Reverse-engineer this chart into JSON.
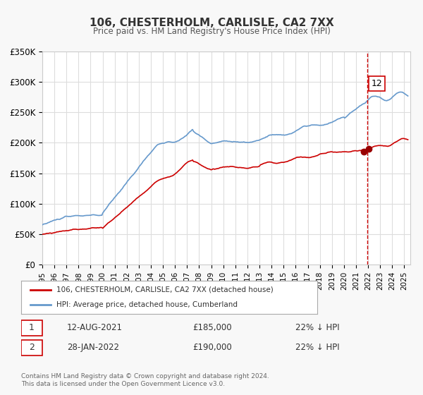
{
  "title": "106, CHESTERHOLM, CARLISLE, CA2 7XX",
  "subtitle": "Price paid vs. HM Land Registry's House Price Index (HPI)",
  "xlabel": "",
  "ylabel": "",
  "ylim": [
    0,
    350000
  ],
  "xlim_start": 1995.0,
  "xlim_end": 2025.5,
  "yticks": [
    0,
    50000,
    100000,
    150000,
    200000,
    250000,
    300000,
    350000
  ],
  "ytick_labels": [
    "£0",
    "£50K",
    "£100K",
    "£150K",
    "£200K",
    "£250K",
    "£300K",
    "£350K"
  ],
  "xticks": [
    1995,
    1996,
    1997,
    1998,
    1999,
    2000,
    2001,
    2002,
    2003,
    2004,
    2005,
    2006,
    2007,
    2008,
    2009,
    2010,
    2011,
    2012,
    2013,
    2014,
    2015,
    2016,
    2017,
    2018,
    2019,
    2020,
    2021,
    2022,
    2023,
    2024,
    2025
  ],
  "red_line_color": "#cc0000",
  "blue_line_color": "#6699cc",
  "marker_color": "#990000",
  "vline_color": "#cc0000",
  "vline_x": 2021.95,
  "annotation_label": "12",
  "sale1_date": "12-AUG-2021",
  "sale1_price": "£185,000",
  "sale1_hpi": "22% ↓ HPI",
  "sale2_date": "28-JAN-2022",
  "sale2_price": "£190,000",
  "sale2_hpi": "22% ↓ HPI",
  "legend_line1": "106, CHESTERHOLM, CARLISLE, CA2 7XX (detached house)",
  "legend_line2": "HPI: Average price, detached house, Cumberland",
  "footer": "Contains HM Land Registry data © Crown copyright and database right 2024.\nThis data is licensed under the Open Government Licence v3.0.",
  "bg_color": "#f8f8f8",
  "plot_bg_color": "#ffffff",
  "grid_color": "#dddddd"
}
